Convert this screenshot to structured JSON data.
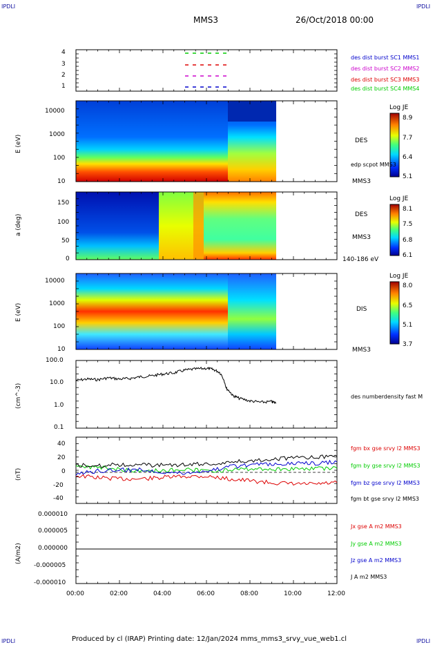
{
  "corner_label": "IPDLI",
  "header": {
    "spacecraft": "MMS3",
    "date": "26/Oct/2018 00:00"
  },
  "footer": "Produced by cl (IRAP)   Printing date: 12/Jan/2024   mms_mms3_srvy_vue_web1.cl",
  "colors": {
    "blue": "#0000cc",
    "magenta": "#cc00cc",
    "red": "#dd0000",
    "green": "#00cc00",
    "black": "#000000"
  },
  "panels": {
    "burst": {
      "yticks": [
        "4",
        "3",
        "2",
        "1"
      ],
      "legend": [
        {
          "text": "des dist burst SC1 MMS1",
          "color": "#0000cc"
        },
        {
          "text": "des dist burst SC2 MMS2",
          "color": "#cc00cc"
        },
        {
          "text": "des dist burst SC3 MMS3",
          "color": "#dd0000"
        },
        {
          "text": "des dist burst SC4 MMS4",
          "color": "#00cc00"
        }
      ]
    },
    "des_energy": {
      "ylabel": "E (eV)",
      "yticks": [
        "10000",
        "1000",
        "100",
        "10"
      ],
      "right_label": "DES",
      "overlay_label": "edp scpot MMS3",
      "sc_label": "MMS3",
      "cbar_title": "Log JE",
      "cbar_ticks": [
        "8.9",
        "7.7",
        "6.4",
        "5.1"
      ]
    },
    "des_pitch": {
      "ylabel": "a (deg)",
      "yticks": [
        "150",
        "100",
        "50",
        "0"
      ],
      "right_label": "DES",
      "sc_label": "MMS3",
      "energy_range": "140-186 eV",
      "cbar_title": "Log JE",
      "cbar_ticks": [
        "8.1",
        "7.5",
        "6.8",
        "6.1"
      ]
    },
    "dis_energy": {
      "ylabel": "E (eV)",
      "yticks": [
        "10000",
        "1000",
        "100",
        "10"
      ],
      "right_label": "DIS",
      "sc_label": "MMS3",
      "cbar_title": "Log JE",
      "cbar_ticks": [
        "8.0",
        "6.5",
        "5.1",
        "3.7"
      ]
    },
    "density": {
      "ylabel": "(cm^-3)",
      "yticks": [
        "100.0",
        "10.0",
        "1.0",
        "0.1"
      ],
      "legend": "des numberdensity fast M"
    },
    "bfield": {
      "ylabel": "(nT)",
      "yticks": [
        "40",
        "20",
        "0",
        "-20",
        "-40"
      ],
      "legend": [
        {
          "text": "fgm bx gse srvy l2 MMS3",
          "color": "#dd0000"
        },
        {
          "text": "fgm by gse srvy l2 MMS3",
          "color": "#00cc00"
        },
        {
          "text": "fgm bz gse srvy l2 MMS3",
          "color": "#0000cc"
        },
        {
          "text": "fgm bt gse srvy l2 MMS3",
          "color": "#000000"
        }
      ]
    },
    "current": {
      "ylabel": "(A/m2)",
      "yticks": [
        "0.000010",
        "0.000005",
        "0.000000",
        "-0.000005",
        "-0.000010"
      ],
      "legend": [
        {
          "text": "Jx gse A m2 MMS3",
          "color": "#dd0000"
        },
        {
          "text": "Jy gse A m2 MMS3",
          "color": "#00cc00"
        },
        {
          "text": "Jz gse A m2 MMS3",
          "color": "#0000cc"
        },
        {
          "text": "J A m2 MMS3",
          "color": "#000000"
        }
      ]
    }
  },
  "chart_data": {
    "type": "line",
    "x_ticks": [
      "00:00",
      "02:00",
      "04:00",
      "06:00",
      "08:00",
      "10:00",
      "12:00"
    ],
    "xlim_hours": [
      0,
      12
    ],
    "series": [
      {
        "name": "des numberdensity fast M",
        "x": [
          0,
          0.5,
          1,
          1.5,
          2,
          2.5,
          3,
          3.5,
          4,
          4.5,
          5,
          5.5,
          6,
          6.3,
          6.6,
          6.9,
          7.2,
          7.5,
          8,
          8.5,
          9,
          9.2
        ],
        "values": [
          13,
          15,
          14,
          17,
          15,
          16,
          19,
          21,
          25,
          28,
          37,
          42,
          45,
          40,
          30,
          6,
          2.8,
          2.1,
          1.6,
          1.4,
          1.5,
          1.3
        ]
      },
      {
        "name": "fgm bx gse srvy l2 MMS3",
        "x": [
          0,
          1,
          2,
          3,
          4,
          5,
          6,
          7,
          8,
          9,
          10,
          11,
          12
        ],
        "values": [
          -5,
          -8,
          -10,
          -10,
          -8,
          -6,
          -6,
          -10,
          -13,
          -16,
          -18,
          -18,
          -16
        ]
      },
      {
        "name": "fgm by gse srvy l2 MMS3",
        "x": [
          0,
          1,
          2,
          3,
          4,
          5,
          6,
          7,
          8,
          9,
          10,
          11,
          12
        ],
        "values": [
          9,
          7,
          5,
          2,
          3,
          4,
          2,
          3,
          5,
          5,
          5,
          6,
          6
        ]
      },
      {
        "name": "fgm bz gse srvy l2 MMS3",
        "x": [
          0,
          1,
          2,
          3,
          4,
          5,
          6,
          7,
          8,
          9,
          10,
          11,
          12
        ],
        "values": [
          -3,
          2,
          4,
          4,
          1,
          -1,
          3,
          8,
          12,
          12,
          13,
          14,
          16
        ]
      },
      {
        "name": "fgm bt gse srvy l2 MMS3",
        "x": [
          0,
          1,
          2,
          3,
          4,
          5,
          6,
          7,
          8,
          9,
          10,
          11,
          12
        ],
        "values": [
          11,
          10,
          12,
          11,
          11,
          12,
          13,
          15,
          18,
          21,
          22,
          23,
          25
        ]
      }
    ]
  }
}
